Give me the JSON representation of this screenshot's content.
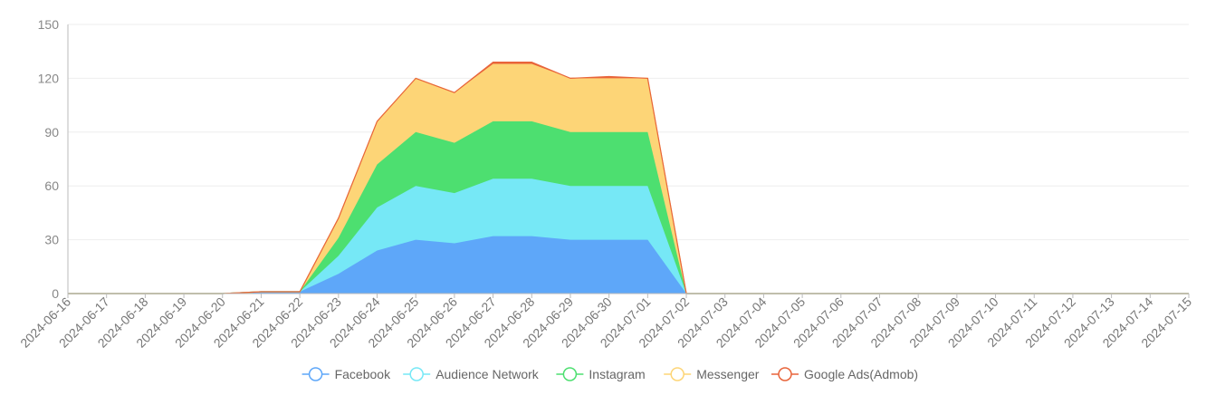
{
  "chart_data": {
    "type": "area",
    "stacked": true,
    "title": "",
    "xlabel": "",
    "ylabel": "",
    "ylim": [
      0,
      150
    ],
    "yticks": [
      "0",
      "30",
      "60",
      "90",
      "120",
      "150"
    ],
    "grid": true,
    "legend_position": "bottom-center",
    "categories": [
      "2024-06-16",
      "2024-06-17",
      "2024-06-18",
      "2024-06-19",
      "2024-06-20",
      "2024-06-21",
      "2024-06-22",
      "2024-06-23",
      "2024-06-24",
      "2024-06-25",
      "2024-06-26",
      "2024-06-27",
      "2024-06-28",
      "2024-06-29",
      "2024-06-30",
      "2024-07-01",
      "2024-07-02",
      "2024-07-03",
      "2024-07-04",
      "2024-07-05",
      "2024-07-06",
      "2024-07-07",
      "2024-07-08",
      "2024-07-09",
      "2024-07-10",
      "2024-07-11",
      "2024-07-12",
      "2024-07-13",
      "2024-07-14",
      "2024-07-15"
    ],
    "series": [
      {
        "name": "Facebook",
        "color": "#5ea7f9",
        "values": [
          0,
          0,
          0,
          0,
          0,
          1,
          1,
          11,
          24,
          30,
          28,
          32,
          32,
          30,
          30,
          30,
          0,
          0,
          0,
          0,
          0,
          0,
          0,
          0,
          0,
          0,
          0,
          0,
          0,
          0
        ]
      },
      {
        "name": "Audience Network",
        "color": "#76e8f6",
        "values": [
          0,
          0,
          0,
          0,
          0,
          0,
          0,
          10,
          24,
          30,
          28,
          32,
          32,
          30,
          30,
          30,
          0,
          0,
          0,
          0,
          0,
          0,
          0,
          0,
          0,
          0,
          0,
          0,
          0,
          0
        ]
      },
      {
        "name": "Instagram",
        "color": "#4ddf70",
        "values": [
          0,
          0,
          0,
          0,
          0,
          0,
          0,
          10,
          24,
          30,
          28,
          32,
          32,
          30,
          30,
          30,
          0,
          0,
          0,
          0,
          0,
          0,
          0,
          0,
          0,
          0,
          0,
          0,
          0,
          0
        ]
      },
      {
        "name": "Messenger",
        "color": "#fdd577",
        "values": [
          0,
          0,
          0,
          0,
          0,
          0,
          0,
          11,
          24,
          30,
          28,
          32,
          32,
          30,
          30,
          30,
          0,
          0,
          0,
          0,
          0,
          0,
          0,
          0,
          0,
          0,
          0,
          0,
          0,
          0
        ]
      },
      {
        "name": "Google Ads(Admob)",
        "color": "#e8643a",
        "values": [
          0,
          0,
          0,
          0,
          0,
          0,
          0,
          0,
          0,
          0,
          0,
          1,
          1,
          0,
          1,
          0,
          0,
          0,
          0,
          0,
          0,
          0,
          0,
          0,
          0,
          0,
          0,
          0,
          0,
          0
        ]
      }
    ]
  }
}
